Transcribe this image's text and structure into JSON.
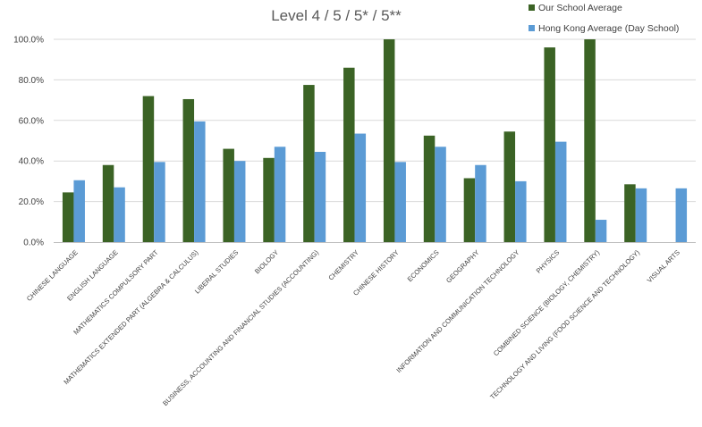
{
  "chart_data": {
    "type": "bar",
    "title": "Level 4 / 5 / 5* / 5**",
    "xlabel": "",
    "ylabel": "",
    "ylim": [
      0,
      100
    ],
    "ytick_values": [
      0,
      20,
      40,
      60,
      80,
      100
    ],
    "ytick_labels": [
      "0.0%",
      "20.0%",
      "40.0%",
      "60.0%",
      "80.0%",
      "100.0%"
    ],
    "legend_position": "top-right",
    "categories": [
      "CHINESE LANGUAGE",
      "ENGLISH LANGUAGE",
      "MATHEMATICS COMPULSORY PART",
      "MATHEMATICS EXTENDED PART (ALGEBRA & CALCULUS)",
      "LIBERAL STUDIES",
      "BIOLOGY",
      "BUSINESS, ACCOUNTING AND FINANCIAL STUDIES (ACCOUNTING)",
      "CHEMISTRY",
      "CHINESE HISTORY",
      "ECONOMICS",
      "GEOGRAPHY",
      "INFORMATION AND COMMUNICATION TECHNOLOGY",
      "PHYSICS",
      "COMBINED SCIENCE (BIOLOGY, CHEMISTRY)",
      "TECHNOLOGY AND LIVING (FOOD SCIENCE AND TECHNOLOGY)",
      "VISUAL ARTS"
    ],
    "series": [
      {
        "name": "Our School Average",
        "color": "#3b6325",
        "values": [
          24.5,
          38.0,
          72.0,
          70.5,
          46.0,
          41.5,
          77.5,
          86.0,
          100.0,
          52.5,
          31.5,
          54.5,
          96.0,
          100.0,
          28.5,
          null
        ]
      },
      {
        "name": "Hong Kong Average (Day School)",
        "color": "#5b9bd5",
        "values": [
          30.5,
          27.0,
          39.5,
          59.5,
          40.0,
          47.0,
          44.5,
          53.5,
          39.5,
          47.0,
          38.0,
          30.0,
          49.5,
          11.0,
          26.5,
          26.5
        ]
      }
    ]
  }
}
